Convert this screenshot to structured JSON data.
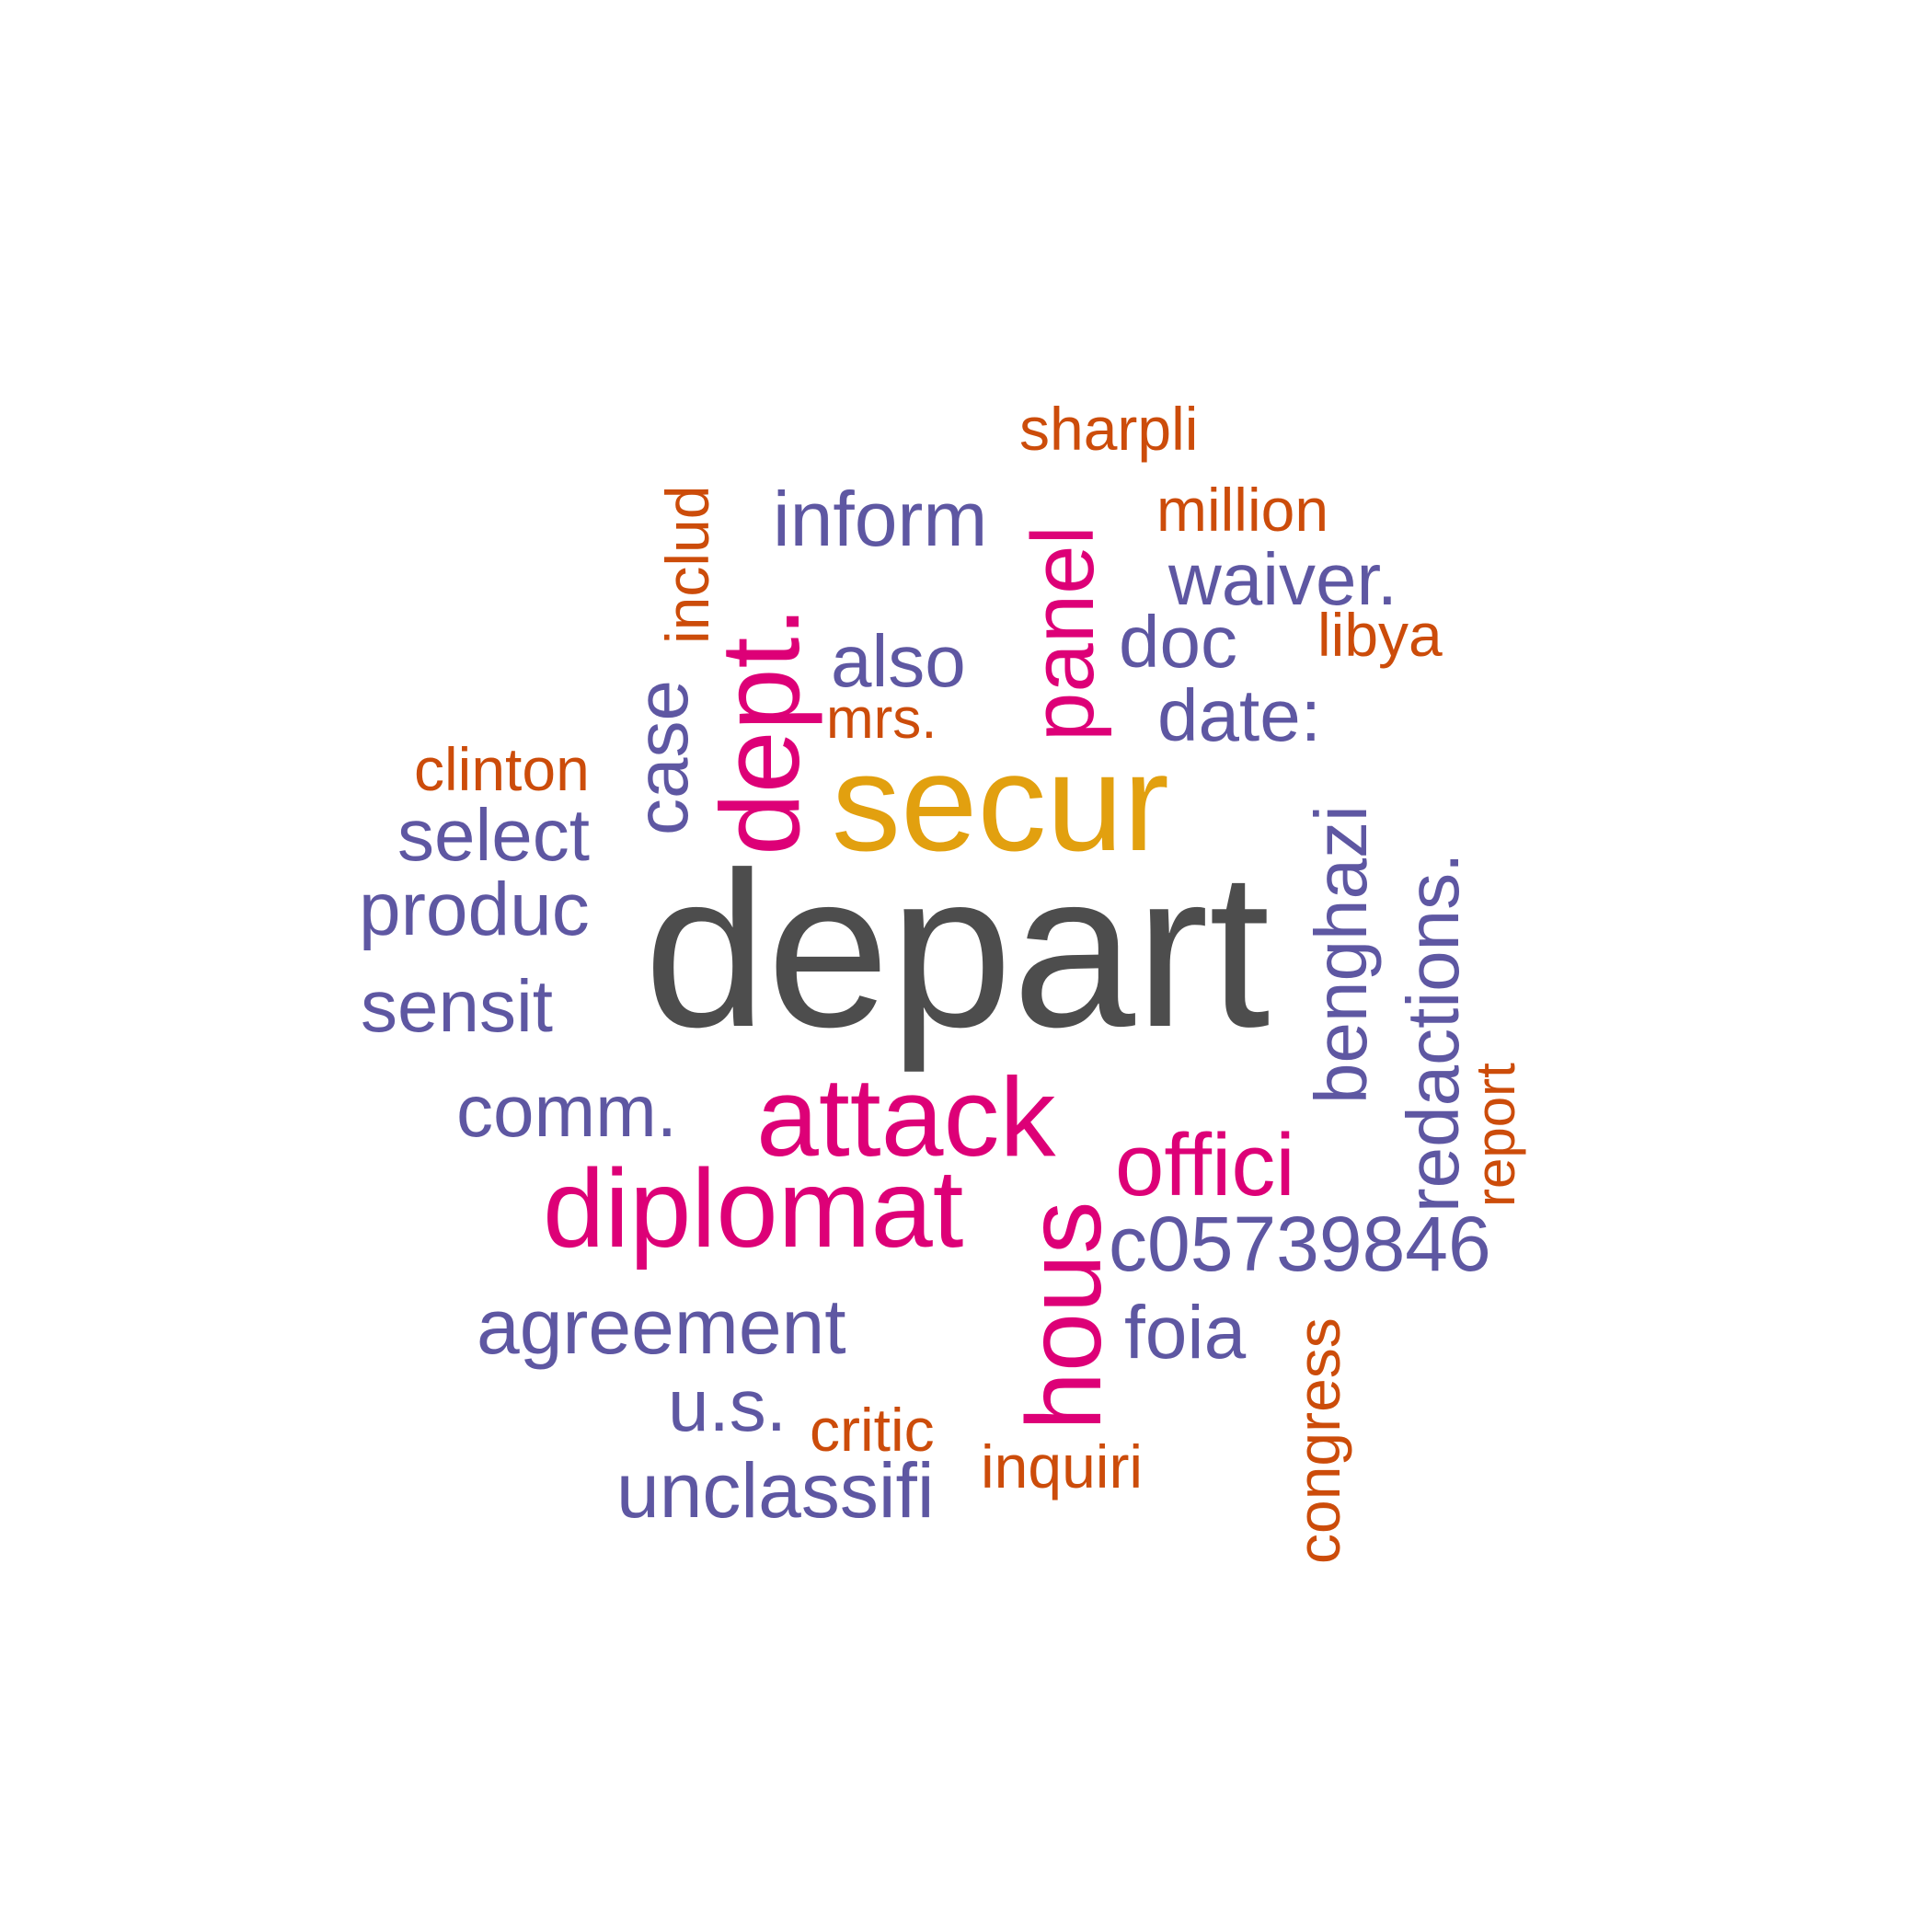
{
  "palette": {
    "gray": "#4d4d4d",
    "gold": "#e2a00f",
    "magenta": "#dd0077",
    "purple": "#5e57a2",
    "orange": "#cc4c0a"
  },
  "words": {
    "depart": "depart",
    "secur": "secur",
    "attack": "attack",
    "diplomat": "diplomat",
    "dept": "dept.",
    "panel": "panel",
    "hous": "hous",
    "offici": "offici",
    "inform": "inform",
    "waiver": "waiver.",
    "doc": "doc",
    "also": "also",
    "date": "date:",
    "select": "select",
    "produc": "produc",
    "sensit": "sensit",
    "comm": "comm.",
    "c05739846": "c05739846",
    "agreement": "agreement",
    "foia": "foia",
    "us": "u.s.",
    "unclassifi": "unclassifi",
    "case": "case",
    "benghazi": "benghazi",
    "redactions": "redactions.",
    "sharpli": "sharpli",
    "million": "million",
    "libya": "libya",
    "includ": "includ",
    "mrs": "mrs.",
    "clinton": "clinton",
    "report": "report",
    "critic": "critic",
    "inquiri": "inquiri",
    "congress": "congress"
  }
}
